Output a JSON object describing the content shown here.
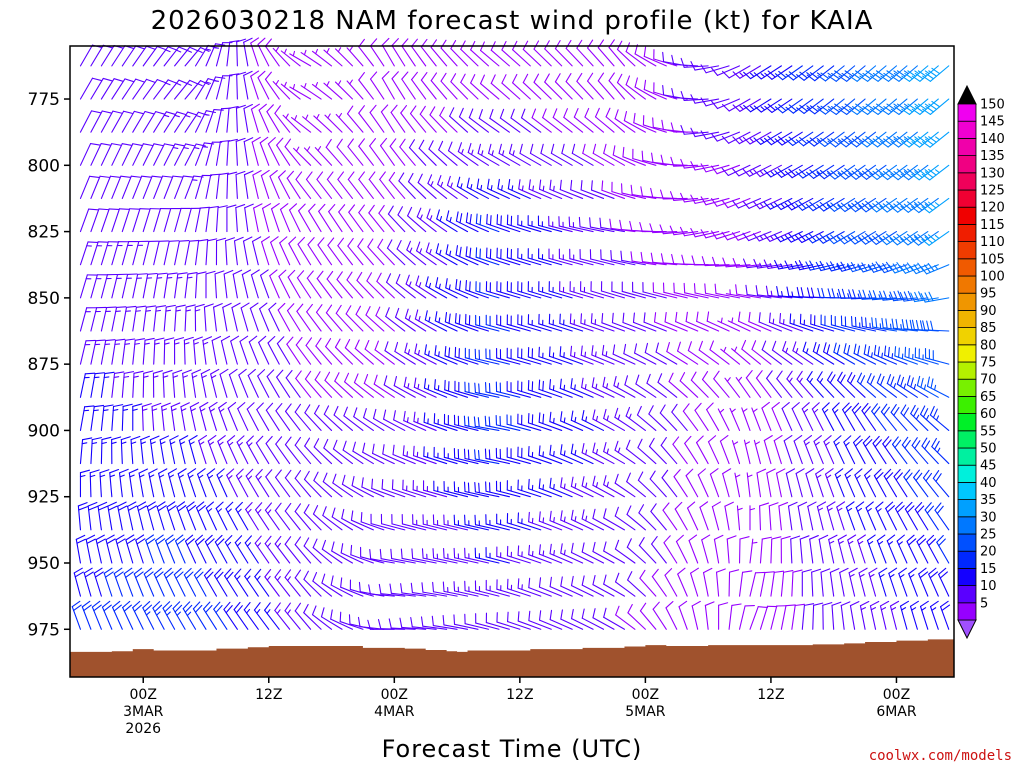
{
  "chart_data": {
    "type": "wind_barb_timeseries",
    "title": "2026030218 NAM forecast wind profile (kt) for KAIA",
    "xlabel": "Forecast Time (UTC)",
    "credit": "coolwx.com/models",
    "y_axis": {
      "label": "",
      "ticks": [
        775,
        800,
        825,
        850,
        875,
        900,
        925,
        950,
        975
      ],
      "range_hpa": [
        755,
        993
      ],
      "inverted": true
    },
    "x_axis": {
      "range_hours_from_init": [
        -1.0,
        83.5
      ],
      "ticks": [
        {
          "hour": 6,
          "lines": [
            "00Z",
            "3MAR",
            "2026"
          ]
        },
        {
          "hour": 18,
          "lines": [
            "12Z"
          ]
        },
        {
          "hour": 30,
          "lines": [
            "00Z",
            "4MAR"
          ]
        },
        {
          "hour": 42,
          "lines": [
            "12Z"
          ]
        },
        {
          "hour": 54,
          "lines": [
            "00Z",
            "5MAR"
          ]
        },
        {
          "hour": 66,
          "lines": [
            "12Z"
          ]
        },
        {
          "hour": 78,
          "lines": [
            "00Z",
            "6MAR"
          ]
        }
      ]
    },
    "colorbar": {
      "levels": [
        5,
        10,
        15,
        20,
        25,
        30,
        35,
        40,
        45,
        50,
        55,
        60,
        65,
        70,
        75,
        80,
        85,
        90,
        95,
        100,
        105,
        110,
        115,
        120,
        125,
        130,
        135,
        140,
        145,
        150
      ],
      "colors": [
        "#9600ff",
        "#5a00ff",
        "#1400ff",
        "#0028ff",
        "#0050ff",
        "#0078ff",
        "#00a0ff",
        "#00c8ff",
        "#00f0dc",
        "#00f0a0",
        "#00f064",
        "#00f028",
        "#3cf000",
        "#78f000",
        "#b4f000",
        "#f0f000",
        "#f0d200",
        "#f0b400",
        "#f09600",
        "#f07800",
        "#f05a00",
        "#f03c00",
        "#f01e00",
        "#f00000",
        "#f00032",
        "#f0005a",
        "#f00082",
        "#f000aa",
        "#f000d2",
        "#f000f0"
      ],
      "under_color": "#a050ff",
      "over_color": "#000000"
    },
    "terrain": {
      "color": "#a0522d",
      "surface_pressure_hpa": [
        {
          "hour": -1,
          "p": 983.5
        },
        {
          "hour": 3,
          "p": 983.3
        },
        {
          "hour": 5,
          "p": 982.5
        },
        {
          "hour": 7,
          "p": 983.0
        },
        {
          "hour": 10,
          "p": 983.0
        },
        {
          "hour": 13,
          "p": 982.3
        },
        {
          "hour": 16,
          "p": 981.8
        },
        {
          "hour": 18,
          "p": 981.3
        },
        {
          "hour": 21,
          "p": 981.3
        },
        {
          "hour": 25,
          "p": 981.3
        },
        {
          "hour": 27,
          "p": 982.0
        },
        {
          "hour": 31,
          "p": 982.3
        },
        {
          "hour": 33,
          "p": 982.8
        },
        {
          "hour": 35,
          "p": 983.3
        },
        {
          "hour": 36,
          "p": 983.5
        },
        {
          "hour": 37,
          "p": 983.0
        },
        {
          "hour": 41,
          "p": 983.0
        },
        {
          "hour": 43,
          "p": 982.5
        },
        {
          "hour": 46,
          "p": 982.5
        },
        {
          "hour": 48,
          "p": 982.0
        },
        {
          "hour": 50,
          "p": 982.0
        },
        {
          "hour": 52,
          "p": 981.5
        },
        {
          "hour": 54,
          "p": 981.0
        },
        {
          "hour": 56,
          "p": 981.3
        },
        {
          "hour": 60,
          "p": 981.0
        },
        {
          "hour": 63,
          "p": 981.0
        },
        {
          "hour": 66,
          "p": 981.0
        },
        {
          "hour": 70,
          "p": 980.7
        },
        {
          "hour": 73,
          "p": 980.3
        },
        {
          "hour": 75,
          "p": 979.8
        },
        {
          "hour": 78,
          "p": 979.3
        },
        {
          "hour": 81,
          "p": 978.8
        },
        {
          "hour": 83.5,
          "p": 978.5
        }
      ]
    },
    "barbs": {
      "time_step_hours": 1,
      "pressure_step_hpa": 12.5,
      "top_pressure_hpa": 762.5,
      "description_keyframes": [
        {
          "hour": 0,
          "layers": [
            {
              "p": 975,
              "dir": 340,
              "spd": 20
            },
            {
              "p": 900,
              "dir": 10,
              "spd": 16
            },
            {
              "p": 825,
              "dir": 20,
              "spd": 12
            },
            {
              "p": 775,
              "dir": 30,
              "spd": 10
            }
          ]
        },
        {
          "hour": 10,
          "layers": [
            {
              "p": 975,
              "dir": 330,
              "spd": 24
            },
            {
              "p": 900,
              "dir": 350,
              "spd": 14
            },
            {
              "p": 825,
              "dir": 15,
              "spd": 12
            },
            {
              "p": 775,
              "dir": 40,
              "spd": 14
            }
          ]
        },
        {
          "hour": 22,
          "layers": [
            {
              "p": 975,
              "dir": 320,
              "spd": 12
            },
            {
              "p": 900,
              "dir": 320,
              "spd": 10
            },
            {
              "p": 825,
              "dir": 330,
              "spd": 8
            },
            {
              "p": 775,
              "dir": 300,
              "spd": 6
            }
          ]
        },
        {
          "hour": 30,
          "layers": [
            {
              "p": 975,
              "dir": 270,
              "spd": 10
            },
            {
              "p": 900,
              "dir": 300,
              "spd": 10
            },
            {
              "p": 825,
              "dir": 320,
              "spd": 9
            },
            {
              "p": 775,
              "dir": 330,
              "spd": 8
            }
          ]
        },
        {
          "hour": 40,
          "layers": [
            {
              "p": 975,
              "dir": 285,
              "spd": 12
            },
            {
              "p": 900,
              "dir": 280,
              "spd": 22
            },
            {
              "p": 825,
              "dir": 290,
              "spd": 20
            },
            {
              "p": 775,
              "dir": 310,
              "spd": 8
            }
          ]
        },
        {
          "hour": 52,
          "layers": [
            {
              "p": 975,
              "dir": 300,
              "spd": 10
            },
            {
              "p": 900,
              "dir": 300,
              "spd": 14
            },
            {
              "p": 825,
              "dir": 280,
              "spd": 10
            },
            {
              "p": 775,
              "dir": 320,
              "spd": 8
            }
          ]
        },
        {
          "hour": 64,
          "layers": [
            {
              "p": 975,
              "dir": 20,
              "spd": 8
            },
            {
              "p": 900,
              "dir": 340,
              "spd": 6
            },
            {
              "p": 825,
              "dir": 250,
              "spd": 8
            },
            {
              "p": 775,
              "dir": 240,
              "spd": 12
            }
          ]
        },
        {
          "hour": 74,
          "layers": [
            {
              "p": 975,
              "dir": 350,
              "spd": 12
            },
            {
              "p": 900,
              "dir": 330,
              "spd": 18
            },
            {
              "p": 825,
              "dir": 240,
              "spd": 25
            },
            {
              "p": 775,
              "dir": 230,
              "spd": 28
            }
          ]
        },
        {
          "hour": 83,
          "layers": [
            {
              "p": 975,
              "dir": 340,
              "spd": 18
            },
            {
              "p": 900,
              "dir": 310,
              "spd": 24
            },
            {
              "p": 825,
              "dir": 235,
              "spd": 35
            },
            {
              "p": 775,
              "dir": 230,
              "spd": 38
            }
          ]
        }
      ]
    }
  }
}
